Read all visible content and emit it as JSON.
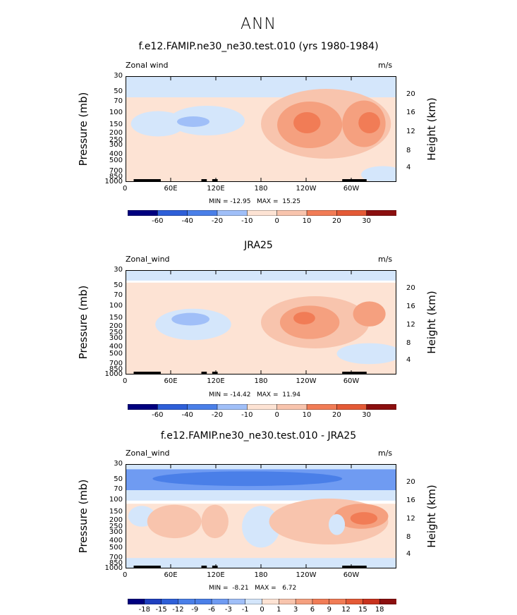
{
  "page_title": "ANN",
  "chart_data": [
    {
      "type": "contour",
      "title": "f.e12.FAMIP.ne30_ne30.test.010 (yrs 1980-1984)",
      "variable": "Zonal wind",
      "units": "m/s",
      "ylabel_left": "Pressure (mb)",
      "ylabel_right": "Height (km)",
      "pressure_ticks": [
        "30",
        "50",
        "70",
        "100",
        "150",
        "200",
        "250",
        "300",
        "400",
        "500",
        "700",
        "850",
        "1000"
      ],
      "height_ticks": [
        "20",
        "16",
        "12",
        "8",
        "4"
      ],
      "x_ticks": [
        "0",
        "60E",
        "120E",
        "180",
        "120W",
        "60W"
      ],
      "min_max": "MIN = -12.95   MAX =  15.25",
      "colorbar_labels": [
        "-60",
        "-40",
        "-20",
        "-10",
        "0",
        "10",
        "20",
        "30"
      ]
    },
    {
      "type": "contour",
      "title": "JRA25",
      "variable": "Zonal_wind",
      "units": "m/s",
      "ylabel_left": "Pressure (mb)",
      "ylabel_right": "Height (km)",
      "pressure_ticks": [
        "30",
        "50",
        "70",
        "100",
        "150",
        "200",
        "250",
        "300",
        "400",
        "500",
        "700",
        "850",
        "1000"
      ],
      "height_ticks": [
        "20",
        "16",
        "12",
        "8",
        "4"
      ],
      "x_ticks": [
        "0",
        "60E",
        "120E",
        "180",
        "120W",
        "60W"
      ],
      "min_max": "MIN = -14.42   MAX =  11.94",
      "colorbar_labels": [
        "-60",
        "-40",
        "-20",
        "-10",
        "0",
        "10",
        "20",
        "30"
      ]
    },
    {
      "type": "contour",
      "title": "f.e12.FAMIP.ne30_ne30.test.010 - JRA25",
      "variable": "Zonal_wind",
      "units": "m/s",
      "ylabel_left": "Pressure (mb)",
      "ylabel_right": "Height (km)",
      "pressure_ticks": [
        "30",
        "50",
        "70",
        "100",
        "150",
        "200",
        "250",
        "300",
        "400",
        "500",
        "700",
        "850",
        "1000"
      ],
      "height_ticks": [
        "20",
        "16",
        "12",
        "8",
        "4"
      ],
      "x_ticks": [
        "0",
        "60E",
        "120E",
        "180",
        "120W",
        "60W"
      ],
      "min_max": "MIN =  -8.21   MAX =   6.72",
      "colorbar_labels": [
        "-18",
        "-15",
        "-12",
        "-9",
        "-6",
        "-3",
        "-1",
        "0",
        "1",
        "3",
        "6",
        "9",
        "12",
        "15",
        "18"
      ]
    }
  ],
  "colors": {
    "scale": [
      "#00007f",
      "#1f3fbf",
      "#2e5fd8",
      "#4a7fe8",
      "#6f9bf2",
      "#a0bff8",
      "#d4e6fb",
      "#fde3d4",
      "#f8c4ad",
      "#f5a07f",
      "#f17c56",
      "#e45a36",
      "#c8321e",
      "#8b0f0f"
    ]
  }
}
